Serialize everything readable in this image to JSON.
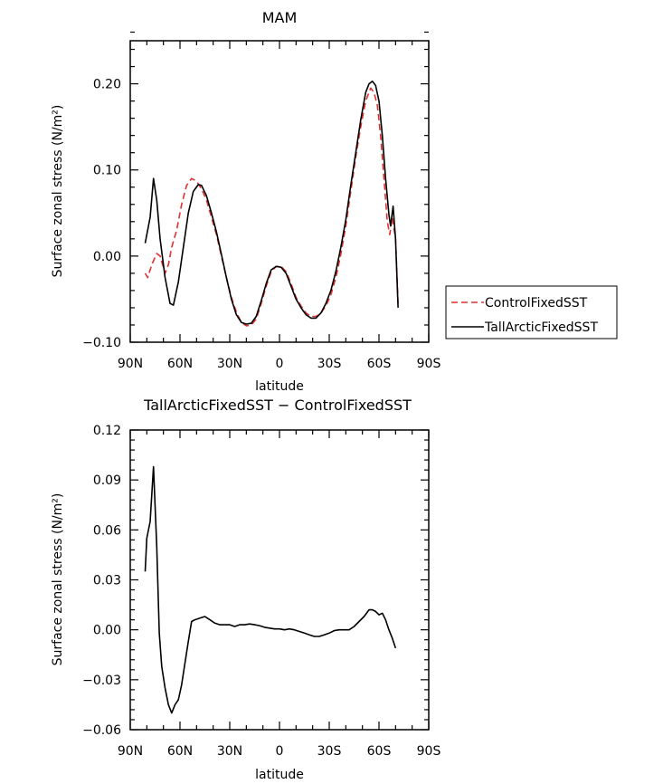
{
  "chart_data": [
    {
      "type": "line",
      "title": "MAM",
      "xlabel": "latitude",
      "ylabel": "Surface zonal stress (N/m²)",
      "xlim": [
        90,
        -90
      ],
      "ylim": [
        -0.1,
        0.25
      ],
      "x_ticks": [
        90,
        60,
        30,
        0,
        -30,
        -60,
        -90
      ],
      "x_tick_labels": [
        "90N",
        "60N",
        "30N",
        "0",
        "30S",
        "60S",
        "90S"
      ],
      "y_ticks": [
        -0.1,
        0.0,
        0.1,
        0.2
      ],
      "y_tick_labels": [
        "−0.10",
        "0.00",
        "0.10",
        "0.20"
      ],
      "legend_position": "outside-right",
      "series": [
        {
          "name": "ControlFixedSST",
          "color": "#e03030",
          "dash": "dashed",
          "points": [
            [
              81,
              -0.02
            ],
            [
              79.5,
              -0.025
            ],
            [
              77,
              -0.01
            ],
            [
              74,
              0.003
            ],
            [
              72,
              0.0
            ],
            [
              69,
              -0.02
            ],
            [
              67,
              -0.01
            ],
            [
              65,
              0.01
            ],
            [
              62,
              0.03
            ],
            [
              59,
              0.06
            ],
            [
              56,
              0.082
            ],
            [
              53,
              0.09
            ],
            [
              50,
              0.087
            ],
            [
              47,
              0.078
            ],
            [
              44,
              0.065
            ],
            [
              41,
              0.045
            ],
            [
              38,
              0.025
            ],
            [
              35,
              0.0
            ],
            [
              32,
              -0.025
            ],
            [
              29,
              -0.048
            ],
            [
              26,
              -0.065
            ],
            [
              23,
              -0.077
            ],
            [
              20,
              -0.081
            ],
            [
              17,
              -0.08
            ],
            [
              14,
              -0.073
            ],
            [
              11,
              -0.055
            ],
            [
              8,
              -0.035
            ],
            [
              5,
              -0.018
            ],
            [
              2,
              -0.012
            ],
            [
              -1,
              -0.012
            ],
            [
              -4,
              -0.018
            ],
            [
              -7,
              -0.032
            ],
            [
              -10,
              -0.048
            ],
            [
              -13,
              -0.058
            ],
            [
              -16,
              -0.066
            ],
            [
              -19,
              -0.07
            ],
            [
              -22,
              -0.07
            ],
            [
              -25,
              -0.066
            ],
            [
              -28,
              -0.058
            ],
            [
              -31,
              -0.045
            ],
            [
              -34,
              -0.025
            ],
            [
              -37,
              0.002
            ],
            [
              -40,
              0.035
            ],
            [
              -43,
              0.075
            ],
            [
              -46,
              0.115
            ],
            [
              -49,
              0.15
            ],
            [
              -52,
              0.18
            ],
            [
              -55,
              0.195
            ],
            [
              -57,
              0.19
            ],
            [
              -59,
              0.175
            ],
            [
              -61,
              0.14
            ],
            [
              -63,
              0.09
            ],
            [
              -65,
              0.04
            ],
            [
              -66.5,
              0.025
            ],
            [
              -68,
              0.045
            ],
            [
              -70,
              0.02
            ],
            [
              -71.5,
              -0.055
            ]
          ]
        },
        {
          "name": "TallArcticFixedSST",
          "color": "#000000",
          "dash": "solid",
          "points": [
            [
              81,
              0.015
            ],
            [
              78,
              0.045
            ],
            [
              76,
              0.09
            ],
            [
              74,
              0.065
            ],
            [
              72,
              0.02
            ],
            [
              69,
              -0.025
            ],
            [
              66,
              -0.055
            ],
            [
              64,
              -0.057
            ],
            [
              61,
              -0.03
            ],
            [
              58,
              0.01
            ],
            [
              55,
              0.05
            ],
            [
              52,
              0.075
            ],
            [
              49,
              0.083
            ],
            [
              47,
              0.082
            ],
            [
              44,
              0.07
            ],
            [
              41,
              0.05
            ],
            [
              38,
              0.028
            ],
            [
              35,
              0.002
            ],
            [
              32,
              -0.025
            ],
            [
              29,
              -0.05
            ],
            [
              26,
              -0.068
            ],
            [
              23,
              -0.077
            ],
            [
              20,
              -0.079
            ],
            [
              17,
              -0.078
            ],
            [
              14,
              -0.07
            ],
            [
              11,
              -0.052
            ],
            [
              8,
              -0.032
            ],
            [
              5,
              -0.016
            ],
            [
              2,
              -0.012
            ],
            [
              -1,
              -0.013
            ],
            [
              -4,
              -0.02
            ],
            [
              -7,
              -0.035
            ],
            [
              -10,
              -0.05
            ],
            [
              -13,
              -0.06
            ],
            [
              -16,
              -0.068
            ],
            [
              -19,
              -0.072
            ],
            [
              -22,
              -0.072
            ],
            [
              -25,
              -0.066
            ],
            [
              -28,
              -0.055
            ],
            [
              -31,
              -0.04
            ],
            [
              -34,
              -0.018
            ],
            [
              -37,
              0.01
            ],
            [
              -40,
              0.042
            ],
            [
              -43,
              0.082
            ],
            [
              -46,
              0.12
            ],
            [
              -49,
              0.158
            ],
            [
              -52,
              0.19
            ],
            [
              -54,
              0.2
            ],
            [
              -56,
              0.203
            ],
            [
              -58,
              0.198
            ],
            [
              -60,
              0.18
            ],
            [
              -62,
              0.14
            ],
            [
              -64,
              0.09
            ],
            [
              -66,
              0.048
            ],
            [
              -67,
              0.035
            ],
            [
              -68.5,
              0.058
            ],
            [
              -70,
              0.02
            ],
            [
              -71.5,
              -0.06
            ]
          ]
        }
      ]
    },
    {
      "type": "line",
      "title": "TallArcticFixedSST − ControlFixedSST",
      "xlabel": "latitude",
      "ylabel": "Surface zonal stress (N/m²)",
      "xlim": [
        90,
        -90
      ],
      "ylim": [
        -0.06,
        0.12
      ],
      "x_ticks": [
        90,
        60,
        30,
        0,
        -30,
        -60,
        -90
      ],
      "x_tick_labels": [
        "90N",
        "60N",
        "30N",
        "0",
        "30S",
        "60S",
        "90S"
      ],
      "y_ticks": [
        -0.06,
        -0.03,
        0.0,
        0.03,
        0.06,
        0.09,
        0.12
      ],
      "y_tick_labels": [
        "−0.06",
        "−0.03",
        "0.00",
        "0.03",
        "0.06",
        "0.09",
        "0.12"
      ],
      "series": [
        {
          "name": "",
          "color": "#000000",
          "dash": "solid",
          "points": [
            [
              81,
              0.035
            ],
            [
              80,
              0.055
            ],
            [
              78,
              0.065
            ],
            [
              76,
              0.098
            ],
            [
              74,
              0.05
            ],
            [
              72.5,
              -0.002
            ],
            [
              71,
              -0.022
            ],
            [
              69,
              -0.035
            ],
            [
              67,
              -0.045
            ],
            [
              65,
              -0.05
            ],
            [
              63,
              -0.045
            ],
            [
              61,
              -0.042
            ],
            [
              59,
              -0.033
            ],
            [
              57,
              -0.02
            ],
            [
              55,
              -0.007
            ],
            [
              53,
              0.005
            ],
            [
              51,
              0.006
            ],
            [
              48,
              0.007
            ],
            [
              45,
              0.008
            ],
            [
              42,
              0.006
            ],
            [
              39,
              0.004
            ],
            [
              36,
              0.003
            ],
            [
              33,
              0.003
            ],
            [
              30,
              0.003
            ],
            [
              27,
              0.002
            ],
            [
              24,
              0.003
            ],
            [
              21,
              0.003
            ],
            [
              18,
              0.0035
            ],
            [
              15,
              0.003
            ],
            [
              12,
              0.0025
            ],
            [
              9,
              0.0015
            ],
            [
              6,
              0.001
            ],
            [
              3,
              0.0005
            ],
            [
              0,
              0.0005
            ],
            [
              -3,
              0.0
            ],
            [
              -6,
              0.0005
            ],
            [
              -9,
              0.0
            ],
            [
              -12,
              -0.001
            ],
            [
              -15,
              -0.002
            ],
            [
              -18,
              -0.003
            ],
            [
              -21,
              -0.004
            ],
            [
              -24,
              -0.004
            ],
            [
              -27,
              -0.003
            ],
            [
              -30,
              -0.002
            ],
            [
              -33,
              -0.0005
            ],
            [
              -36,
              0.0
            ],
            [
              -39,
              0.0
            ],
            [
              -42,
              0.0
            ],
            [
              -45,
              0.002
            ],
            [
              -48,
              0.005
            ],
            [
              -51,
              0.008
            ],
            [
              -54,
              0.012
            ],
            [
              -56,
              0.012
            ],
            [
              -58,
              0.011
            ],
            [
              -60,
              0.009
            ],
            [
              -62,
              0.01
            ],
            [
              -64,
              0.006
            ],
            [
              -66,
              0.0
            ],
            [
              -68,
              -0.005
            ],
            [
              -70,
              -0.011
            ]
          ]
        }
      ]
    }
  ]
}
